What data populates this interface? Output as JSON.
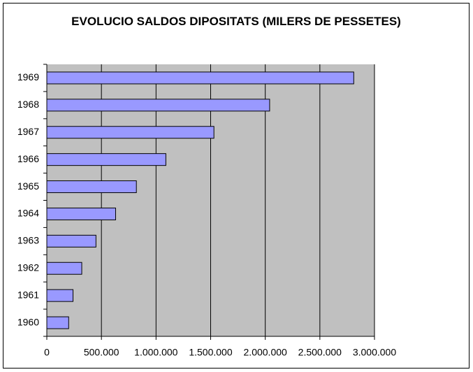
{
  "chart_data": {
    "type": "hbar",
    "title": "EVOLUCIO SALDOS DIPOSITATS (MILERS DE PESSETES)",
    "categories": [
      "1960",
      "1961",
      "1962",
      "1963",
      "1964",
      "1965",
      "1966",
      "1967",
      "1968",
      "1969"
    ],
    "values": [
      200000,
      240000,
      320000,
      450000,
      630000,
      820000,
      1090000,
      1530000,
      2040000,
      2810000
    ],
    "color": "#9999ff",
    "xlim": [
      0,
      3000000
    ],
    "xticks": [
      0,
      {
        "value": 500000,
        "label": "500.000"
      },
      {
        "value": 1000000,
        "label": "1.000.000"
      },
      {
        "value": 1500000,
        "label": "1.500.000"
      },
      {
        "value": 2000000,
        "label": "2.000.000"
      },
      {
        "value": 2500000,
        "label": "2.500.000"
      },
      {
        "value": 3000000,
        "label": "3.000.000"
      }
    ],
    "grid": true
  }
}
